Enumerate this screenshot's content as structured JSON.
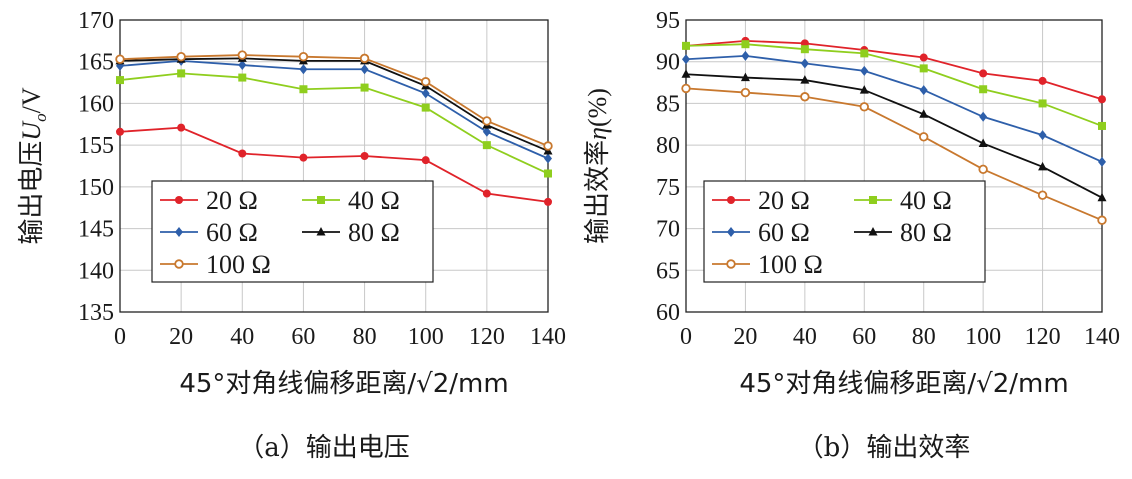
{
  "chart_data": [
    {
      "type": "line",
      "caption": "（a）输出电压",
      "ylabel_main": "输出电压",
      "ylabel_symbol": "U",
      "ylabel_sub": "o",
      "ylabel_unit": "/V",
      "xlabel": "45°对角线偏移距离/√2/mm",
      "x": [
        0,
        20,
        40,
        60,
        80,
        100,
        120,
        140
      ],
      "xlim": [
        0,
        140
      ],
      "ylim": [
        135,
        170
      ],
      "xticks": [
        "0",
        "20",
        "40",
        "60",
        "80",
        "100",
        "120",
        "140"
      ],
      "yticks": [
        "135",
        "140",
        "145",
        "150",
        "155",
        "160",
        "165",
        "170"
      ],
      "grid": true,
      "legend_position": "bottom-left",
      "series": [
        {
          "name": "20 Ω",
          "color": "#e0232a",
          "marker": "circle",
          "values": [
            156.6,
            157.1,
            154.0,
            153.5,
            153.7,
            153.2,
            149.2,
            148.2
          ]
        },
        {
          "name": "40 Ω",
          "color": "#8fce1e",
          "marker": "square",
          "values": [
            162.8,
            163.6,
            163.1,
            161.7,
            161.9,
            159.5,
            155.0,
            151.6
          ]
        },
        {
          "name": "60 Ω",
          "color": "#2e5faa",
          "marker": "diamond",
          "values": [
            164.5,
            165.1,
            164.6,
            164.1,
            164.1,
            161.2,
            156.6,
            153.4
          ]
        },
        {
          "name": "80 Ω",
          "color": "#111111",
          "marker": "triangle",
          "values": [
            165.1,
            165.3,
            165.4,
            165.1,
            165.1,
            162.1,
            157.4,
            154.3
          ]
        },
        {
          "name": "100 Ω",
          "color": "#c8782e",
          "marker": "ocircle",
          "values": [
            165.3,
            165.6,
            165.8,
            165.6,
            165.4,
            162.6,
            157.9,
            154.9
          ]
        }
      ]
    },
    {
      "type": "line",
      "caption": "（b）输出效率",
      "ylabel_main": "输出效率",
      "ylabel_symbol": "η",
      "ylabel_sub": "",
      "ylabel_unit": "(%)",
      "xlabel": "45°对角线偏移距离/√2/mm",
      "x": [
        0,
        20,
        40,
        60,
        80,
        100,
        120,
        140
      ],
      "xlim": [
        0,
        140
      ],
      "ylim": [
        60,
        95
      ],
      "xticks": [
        "0",
        "20",
        "40",
        "60",
        "80",
        "100",
        "120",
        "140"
      ],
      "yticks": [
        "60",
        "65",
        "70",
        "75",
        "80",
        "85",
        "90",
        "95"
      ],
      "grid": true,
      "legend_position": "bottom-left",
      "series": [
        {
          "name": "20 Ω",
          "color": "#e0232a",
          "marker": "circle",
          "values": [
            91.9,
            92.5,
            92.2,
            91.4,
            90.5,
            88.6,
            87.7,
            85.5
          ]
        },
        {
          "name": "40 Ω",
          "color": "#8fce1e",
          "marker": "square",
          "values": [
            91.9,
            92.1,
            91.5,
            91.0,
            89.2,
            86.7,
            85.0,
            82.3
          ]
        },
        {
          "name": "60 Ω",
          "color": "#2e5faa",
          "marker": "diamond",
          "values": [
            90.3,
            90.7,
            89.8,
            88.9,
            86.6,
            83.4,
            81.2,
            78.0
          ]
        },
        {
          "name": "80 Ω",
          "color": "#111111",
          "marker": "triangle",
          "values": [
            88.5,
            88.1,
            87.8,
            86.6,
            83.7,
            80.2,
            77.4,
            73.7
          ]
        },
        {
          "name": "100 Ω",
          "color": "#c8782e",
          "marker": "ocircle",
          "values": [
            86.8,
            86.3,
            85.8,
            84.6,
            81.0,
            77.1,
            74.0,
            71.0
          ]
        }
      ]
    }
  ]
}
